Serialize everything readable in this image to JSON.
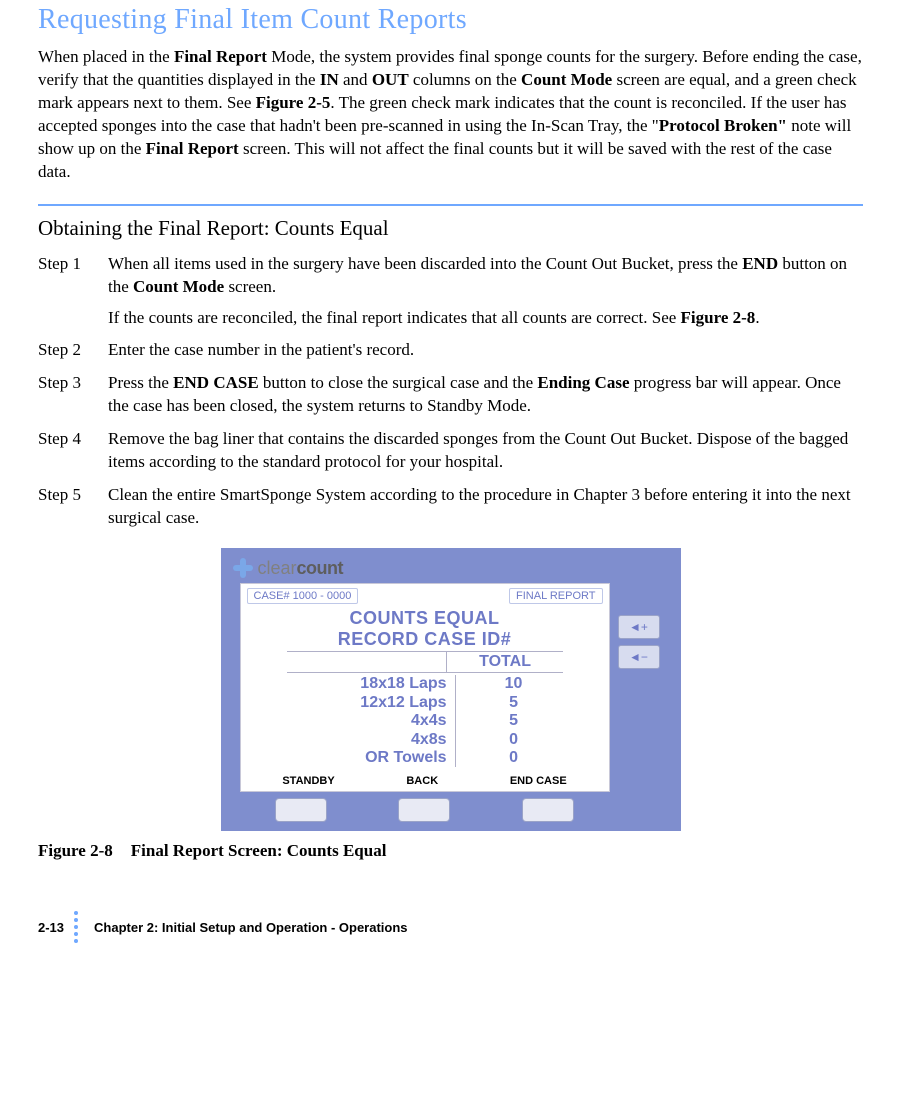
{
  "heading": "Requesting Final Item Count Reports",
  "intro_html": "When placed in the <b>Final Report</b> Mode, the system provides final sponge counts for the surgery. Before ending the case, verify that the quantities displayed in the <b>IN</b> and <b>OUT</b> columns on the <b>Count Mode</b> screen are equal, and a green check mark appears next to them. See <b>Figure 2-5</b>. The green check mark indicates that the count is reconciled. If the user has accepted sponges into the case that hadn't been pre-scanned in using the In-Scan Tray, the \"<b>Protocol Broken\"</b> note will show up on the <b>Final Report</b> screen. This will not affect the final counts but it will be saved with the rest of the case data.",
  "subheading": "Obtaining the Final Report: Counts Equal",
  "steps": [
    {
      "label": "Step 1",
      "html": "When all items used in the surgery have been discarded into the Count Out Bucket, press the <b>END</b> button on the <b>Count Mode</b> screen.",
      "sub_html": "If the counts are reconciled, the final report indicates that all counts are correct. See <b>Figure 2-8</b>."
    },
    {
      "label": "Step 2",
      "html": "Enter the case number in the patient's record."
    },
    {
      "label": "Step 3",
      "html": "Press the <b>END CASE</b> button to close the surgical case and the <b>Ending Case</b> progress bar will appear. Once the case has been closed, the system returns to Standby Mode."
    },
    {
      "label": "Step 4",
      "html": "Remove the bag liner that contains the discarded sponges from the Count Out Bucket. Dispose of the bagged items according to the standard protocol for your hospital."
    },
    {
      "label": "Step 5",
      "html": "Clean the entire SmartSponge System according to the procedure in Chapter 3 before entering it into the next surgical case."
    }
  ],
  "figure": {
    "brand_clear": "clear",
    "brand_count": "count",
    "case_label": "CASE# 1000 - 0000",
    "mode_label": "FINAL REPORT",
    "title_line1": "COUNTS EQUAL",
    "title_line2": "RECORD CASE ID#",
    "total_label": "TOTAL",
    "rows": [
      {
        "name": "18x18 Laps",
        "total": "10"
      },
      {
        "name": "12x12 Laps",
        "total": "5"
      },
      {
        "name": "4x4s",
        "total": "5"
      },
      {
        "name": "4x8s",
        "total": "0"
      },
      {
        "name": "OR Towels",
        "total": "0"
      }
    ],
    "bottom_buttons": [
      "STANDBY",
      "BACK",
      "END CASE"
    ],
    "side_buttons": [
      "◄+",
      "◄−"
    ],
    "colors": {
      "device_bg": "#7f8ece",
      "screen_bg": "#ffffff",
      "accent_text": "#6d79c6",
      "heading_text": "#6fa8ff"
    }
  },
  "caption_label": "Figure 2-8",
  "caption_text": "Final Report Screen: Counts Equal",
  "footer_page": "2-13",
  "footer_text": "Chapter 2: Initial Setup and Operation - Operations"
}
